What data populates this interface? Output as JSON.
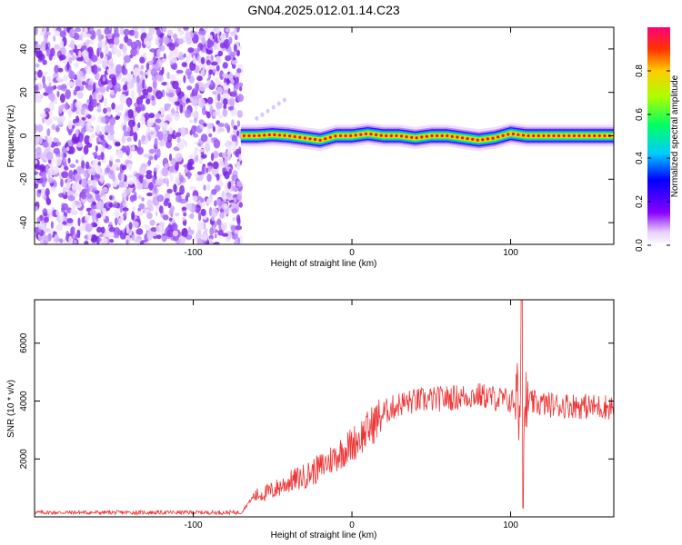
{
  "title": "GN04.2025.012.01.14.C23",
  "chart_data": [
    {
      "type": "heatmap",
      "xlabel": "Height of straight line (km)",
      "ylabel": "Frequency (Hz)",
      "xlim": [
        -200,
        165
      ],
      "ylim": [
        -50,
        50
      ],
      "xticks": [
        -100,
        0,
        100
      ],
      "yticks": [
        -40,
        -20,
        0,
        20,
        40
      ],
      "noise_region_x": [
        -200,
        -70
      ],
      "signal_line": [
        [
          -70,
          0
        ],
        [
          -60,
          0
        ],
        [
          -50,
          0.5
        ],
        [
          -40,
          0
        ],
        [
          -30,
          -1
        ],
        [
          -20,
          -2
        ],
        [
          -10,
          0
        ],
        [
          0,
          0
        ],
        [
          10,
          1
        ],
        [
          20,
          0
        ],
        [
          30,
          0
        ],
        [
          40,
          -1
        ],
        [
          50,
          0
        ],
        [
          60,
          0
        ],
        [
          70,
          -1
        ],
        [
          80,
          -2
        ],
        [
          90,
          -1
        ],
        [
          100,
          1
        ],
        [
          110,
          0
        ],
        [
          120,
          0
        ],
        [
          130,
          0
        ],
        [
          140,
          0
        ],
        [
          150,
          0
        ],
        [
          160,
          0
        ],
        [
          165,
          0
        ]
      ],
      "colorbar": {
        "label": "Normalized spectral amplitude",
        "ticks": [
          "0.0",
          "0.2",
          "0.4",
          "0.6",
          "0.8"
        ],
        "range": [
          0,
          1
        ]
      }
    },
    {
      "type": "line",
      "xlabel": "Height of straight line (km)",
      "ylabel": "SNR (10 * v/v)",
      "xlim": [
        -200,
        165
      ],
      "ylim": [
        0,
        7500
      ],
      "xticks": [
        -100,
        0,
        100
      ],
      "yticks": [
        2000,
        4000,
        6000
      ],
      "series_color": "#ee3333",
      "trend": [
        [
          -200,
          150
        ],
        [
          -70,
          150
        ],
        [
          -62,
          700
        ],
        [
          -50,
          900
        ],
        [
          -40,
          1200
        ],
        [
          -30,
          1400
        ],
        [
          -20,
          1700
        ],
        [
          -10,
          2100
        ],
        [
          0,
          2500
        ],
        [
          10,
          3000
        ],
        [
          20,
          3600
        ],
        [
          30,
          3900
        ],
        [
          40,
          4000
        ],
        [
          50,
          4050
        ],
        [
          60,
          4100
        ],
        [
          70,
          4150
        ],
        [
          80,
          4200
        ],
        [
          90,
          4100
        ],
        [
          100,
          4000
        ],
        [
          110,
          3950
        ],
        [
          120,
          3900
        ],
        [
          130,
          3850
        ],
        [
          140,
          3850
        ],
        [
          150,
          3800
        ],
        [
          165,
          3800
        ]
      ],
      "spike": {
        "x": 107,
        "max": 7600,
        "min": 300
      }
    }
  ]
}
